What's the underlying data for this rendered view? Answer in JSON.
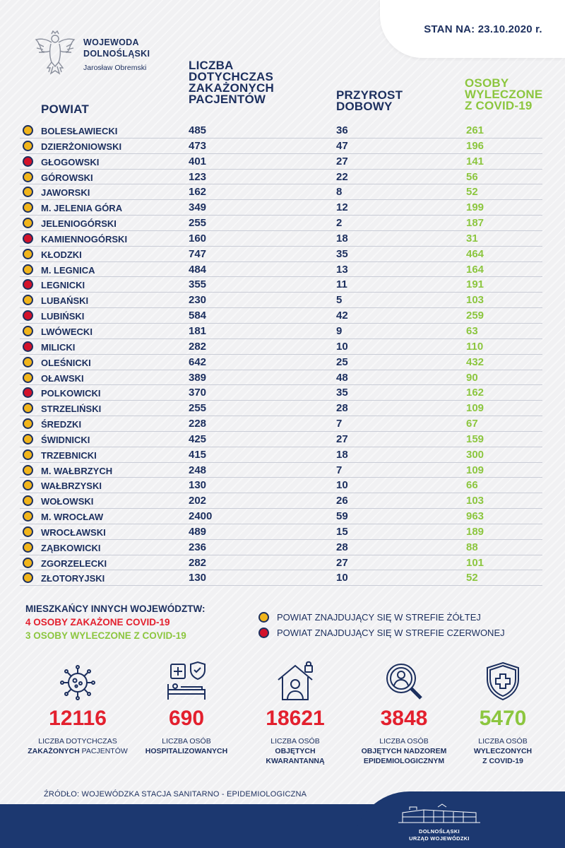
{
  "date_label": "STAN NA: 23.10.2020 r.",
  "org": {
    "title_line1": "WOJEWODA",
    "title_line2": "DOLNOŚLĄSKI",
    "person": "Jarosław Obremski"
  },
  "headers": {
    "powiat": "POWIAT",
    "infected_lines": [
      "LICZBA",
      "DOTYCHCZAS",
      "ZAKAŻONYCH",
      "PACJENTÓW"
    ],
    "daily_lines": [
      "PRZYROST",
      "DOBOWY"
    ],
    "recovered_lines": [
      "OSOBY",
      "WYLECZONE",
      "Z COVID-19"
    ]
  },
  "zone_colors": {
    "yellow": "#f1b51c",
    "red": "#d3122a"
  },
  "rows": [
    {
      "zone": "yellow",
      "name": "BOLESŁAWIECKI",
      "infected": "485",
      "daily": "36",
      "recovered": "261"
    },
    {
      "zone": "yellow",
      "name": "DZIERŻONIOWSKI",
      "infected": "473",
      "daily": "47",
      "recovered": "196"
    },
    {
      "zone": "red",
      "name": "GŁOGOWSKI",
      "infected": "401",
      "daily": "27",
      "recovered": "141"
    },
    {
      "zone": "yellow",
      "name": "GÓROWSKI",
      "infected": "123",
      "daily": "22",
      "recovered": "56"
    },
    {
      "zone": "yellow",
      "name": "JAWORSKI",
      "infected": "162",
      "daily": "8",
      "recovered": "52"
    },
    {
      "zone": "yellow",
      "name": "M. JELENIA GÓRA",
      "infected": "349",
      "daily": "12",
      "recovered": "199"
    },
    {
      "zone": "yellow",
      "name": "JELENIOGÓRSKI",
      "infected": "255",
      "daily": "2",
      "recovered": "187"
    },
    {
      "zone": "red",
      "name": "KAMIENNOGÓRSKI",
      "infected": "160",
      "daily": "18",
      "recovered": "31"
    },
    {
      "zone": "yellow",
      "name": "KŁODZKI",
      "infected": "747",
      "daily": "35",
      "recovered": "464"
    },
    {
      "zone": "yellow",
      "name": "M. LEGNICA",
      "infected": "484",
      "daily": "13",
      "recovered": "164"
    },
    {
      "zone": "red",
      "name": "LEGNICKI",
      "infected": "355",
      "daily": "11",
      "recovered": "191"
    },
    {
      "zone": "yellow",
      "name": "LUBAŃSKI",
      "infected": "230",
      "daily": "5",
      "recovered": "103"
    },
    {
      "zone": "red",
      "name": "LUBIŃSKI",
      "infected": "584",
      "daily": "42",
      "recovered": "259"
    },
    {
      "zone": "yellow",
      "name": "LWÓWECKI",
      "infected": "181",
      "daily": "9",
      "recovered": "63"
    },
    {
      "zone": "red",
      "name": "MILICKI",
      "infected": "282",
      "daily": "10",
      "recovered": "110"
    },
    {
      "zone": "yellow",
      "name": "OLEŚNICKI",
      "infected": "642",
      "daily": "25",
      "recovered": "432"
    },
    {
      "zone": "yellow",
      "name": "OŁAWSKI",
      "infected": "389",
      "daily": "48",
      "recovered": "90"
    },
    {
      "zone": "red",
      "name": "POLKOWICKI",
      "infected": "370",
      "daily": "35",
      "recovered": "162"
    },
    {
      "zone": "yellow",
      "name": "STRZELIŃSKI",
      "infected": "255",
      "daily": "28",
      "recovered": "109"
    },
    {
      "zone": "yellow",
      "name": "ŚREDZKI",
      "infected": "228",
      "daily": "7",
      "recovered": "67"
    },
    {
      "zone": "yellow",
      "name": "ŚWIDNICKI",
      "infected": "425",
      "daily": "27",
      "recovered": "159"
    },
    {
      "zone": "yellow",
      "name": "TRZEBNICKI",
      "infected": "415",
      "daily": "18",
      "recovered": "300"
    },
    {
      "zone": "yellow",
      "name": "M. WAŁBRZYCH",
      "infected": "248",
      "daily": "7",
      "recovered": "109"
    },
    {
      "zone": "yellow",
      "name": "WAŁBRZYSKI",
      "infected": "130",
      "daily": "10",
      "recovered": "66"
    },
    {
      "zone": "yellow",
      "name": "WOŁOWSKI",
      "infected": "202",
      "daily": "26",
      "recovered": "103"
    },
    {
      "zone": "yellow",
      "name": "M. WROCŁAW",
      "infected": "2400",
      "daily": "59",
      "recovered": "963"
    },
    {
      "zone": "yellow",
      "name": "WROCŁAWSKI",
      "infected": "489",
      "daily": "15",
      "recovered": "189"
    },
    {
      "zone": "yellow",
      "name": "ZĄBKOWICKI",
      "infected": "236",
      "daily": "28",
      "recovered": "88"
    },
    {
      "zone": "yellow",
      "name": "ZGORZELECKI",
      "infected": "282",
      "daily": "27",
      "recovered": "101"
    },
    {
      "zone": "yellow",
      "name": "ZŁOTORYJSKI",
      "infected": "130",
      "daily": "10",
      "recovered": "52"
    }
  ],
  "other_voivodeships": {
    "title": "MIESZKAŃCY INNYCH WOJEWÓDZTW:",
    "infected": "4 OSOBY ZAKAŻONE COVID-19",
    "recovered": "3 OSOBY WYLECZONE Z COVID-19"
  },
  "legend": {
    "yellow": "POWIAT ZNAJDUJĄCY SIĘ W STREFIE ŻÓŁTEJ",
    "red": "POWIAT ZNAJDUJĄCY SIĘ W STREFIE CZERWONEJ"
  },
  "stats": [
    {
      "icon": "virus-icon",
      "value": "12116",
      "cap1": "LICZBA DOTYCHCZAS",
      "cap2_bold": "ZAKAŻONYCH",
      "cap2_rest": " PACJENTÓW",
      "cap3": ""
    },
    {
      "icon": "hospital-bed-icon",
      "value": "690",
      "cap1": "LICZBA OSÓB",
      "cap2_bold": "HOSPITALIZOWANYCH",
      "cap2_rest": "",
      "cap3": ""
    },
    {
      "icon": "quarantine-house-icon",
      "value": "18621",
      "cap1": "LICZBA OSÓB",
      "cap2_bold": "OBJĘTYCH",
      "cap2_rest": "",
      "cap3": "KWARANTANNĄ"
    },
    {
      "icon": "magnifier-person-icon",
      "value": "3848",
      "cap1": "LICZBA OSÓB",
      "cap2_bold": "OBJĘTYCH NADZOREM",
      "cap2_rest": "",
      "cap3": "EPIDEMIOLOGICZNYM"
    },
    {
      "icon": "shield-cross-icon",
      "value": "5470",
      "cap1": "LICZBA OSÓB",
      "cap2_bold": "WYLECZONYCH",
      "cap2_rest": "",
      "cap3": "Z COVID-19"
    }
  ],
  "source": "ŹRÓDŁO: WOJEWÓDZKA STACJA SANITARNO - EPIDEMIOLOGICZNA",
  "footer_office": [
    "DOLNOŚLĄSKI",
    "URZĄD WOJEWÓDZKI"
  ]
}
